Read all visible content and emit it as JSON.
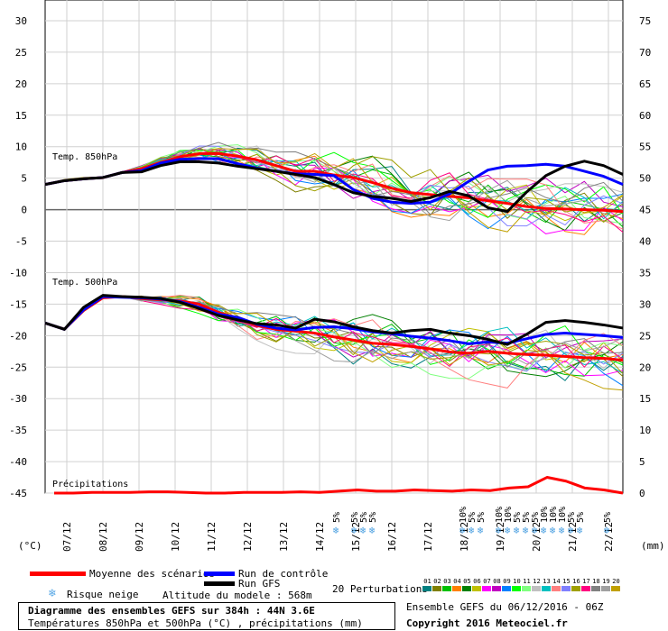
{
  "chart_data": {
    "type": "line",
    "title": "Diagramme des ensembles GEFS sur 384h : 44N 3.6E",
    "subtitle": "Températures 850hPa et 500hPa (°C) , précipitations (mm)",
    "left_axis_unit": "(°C)",
    "right_axis_unit": "(mm)",
    "ylim_left": [
      -45,
      30
    ],
    "ylim_right": [
      0,
      75
    ],
    "left_ticks": [
      "30",
      "25",
      "20",
      "15",
      "10",
      "5",
      "0",
      "-5",
      "-10",
      "-15",
      "-20",
      "-25",
      "-30",
      "-35",
      "-40",
      "-45"
    ],
    "right_ticks": [
      "75",
      "70",
      "65",
      "60",
      "55",
      "50",
      "45",
      "40",
      "35",
      "30",
      "25",
      "20",
      "15",
      "10",
      "5",
      "0"
    ],
    "x_labels": [
      "07/12",
      "08/12",
      "09/12",
      "10/12",
      "11/12",
      "12/12",
      "13/12",
      "14/12",
      "15/12",
      "16/12",
      "17/12",
      "18/12",
      "19/12",
      "20/12",
      "21/12",
      "22/12"
    ],
    "panel_labels": {
      "t850": "Temp. 850hPa",
      "t500": "Temp. 500hPa",
      "precip": "Précipitations"
    },
    "series": [
      {
        "name": "Moyenne des scénarios",
        "panel": "t850",
        "color": "#ff0000",
        "values": [
          4.0,
          4.6,
          4.9,
          5.1,
          5.9,
          6.5,
          7.5,
          8.4,
          8.9,
          8.9,
          8.5,
          7.9,
          7.0,
          6.1,
          6.1,
          5.5,
          5.1,
          4.3,
          3.4,
          2.7,
          2.4,
          2.1,
          1.9,
          1.4,
          1.0,
          0.5,
          0.2,
          0.1,
          0.0,
          -0.1,
          -0.3
        ]
      },
      {
        "name": "Run de contrôle",
        "panel": "t850",
        "color": "#0000ff",
        "values": [
          4.0,
          4.6,
          4.9,
          5.1,
          5.9,
          6.2,
          7.4,
          8.0,
          8.1,
          8.1,
          7.3,
          6.6,
          6.1,
          5.7,
          5.6,
          5.4,
          3.2,
          1.8,
          1.2,
          1.0,
          1.2,
          2.5,
          4.5,
          6.3,
          6.9,
          7.0,
          7.2,
          6.9,
          6.1,
          5.3,
          4.0
        ]
      },
      {
        "name": "Run GFS",
        "panel": "t850",
        "color": "#000000",
        "values": [
          4.0,
          4.6,
          4.9,
          5.1,
          5.9,
          6.0,
          7.0,
          7.6,
          7.6,
          7.4,
          6.9,
          6.5,
          6.1,
          5.6,
          5.1,
          4.0,
          2.7,
          2.1,
          1.8,
          1.3,
          1.9,
          2.9,
          2.2,
          0.3,
          -0.3,
          2.8,
          5.4,
          6.9,
          7.7,
          7.0,
          5.6
        ]
      },
      {
        "name": "Moyenne des scénarios",
        "panel": "t500",
        "color": "#ff0000",
        "values": [
          -18.0,
          -19.0,
          -16.0,
          -14.0,
          -13.8,
          -14.1,
          -14.3,
          -14.5,
          -15.0,
          -16.3,
          -17.3,
          -18.4,
          -19.0,
          -19.3,
          -19.6,
          -20.2,
          -20.7,
          -21.2,
          -21.4,
          -21.7,
          -22.1,
          -22.6,
          -22.8,
          -22.5,
          -22.8,
          -23.0,
          -23.1,
          -23.3,
          -23.5,
          -23.6,
          -23.9
        ]
      },
      {
        "name": "Run de contrôle",
        "panel": "t500",
        "color": "#0000ff",
        "values": [
          -18.0,
          -19.0,
          -15.9,
          -13.8,
          -13.9,
          -14.0,
          -14.2,
          -14.6,
          -15.5,
          -16.6,
          -17.1,
          -18.2,
          -18.8,
          -19.1,
          -18.7,
          -18.6,
          -18.9,
          -19.4,
          -19.7,
          -20.1,
          -20.4,
          -20.8,
          -21.3,
          -21.0,
          -21.2,
          -20.5,
          -19.8,
          -19.6,
          -19.8,
          -20.0,
          -20.3
        ]
      },
      {
        "name": "Run GFS",
        "panel": "t500",
        "color": "#000000",
        "values": [
          -18.0,
          -19.0,
          -15.5,
          -13.6,
          -13.8,
          -13.9,
          -14.1,
          -14.7,
          -15.7,
          -16.8,
          -17.5,
          -18.1,
          -18.3,
          -18.8,
          -17.4,
          -17.8,
          -18.6,
          -19.2,
          -19.6,
          -19.2,
          -19.0,
          -19.6,
          -20.0,
          -20.6,
          -21.4,
          -19.8,
          -17.9,
          -17.6,
          -17.9,
          -18.3,
          -18.8
        ]
      },
      {
        "name": "Moyenne des scénarios",
        "panel": "precip",
        "color": "#ff0000",
        "values": [
          0.0,
          0.0,
          0.1,
          0.1,
          0.1,
          0.2,
          0.2,
          0.1,
          0.0,
          0.0,
          0.1,
          0.1,
          0.1,
          0.2,
          0.1,
          0.3,
          0.5,
          0.3,
          0.3,
          0.5,
          0.4,
          0.3,
          0.5,
          0.4,
          0.8,
          1.0,
          2.5,
          1.9,
          0.8,
          0.5,
          0.0
        ]
      }
    ],
    "snow_risk": [
      {
        "day_index": 7.5,
        "labels": [
          "5%"
        ]
      },
      {
        "day_index": 8.0,
        "labels": [
          "5%",
          "5%",
          "5%"
        ]
      },
      {
        "day_index": 11.0,
        "labels": [
          "10%",
          "5%",
          "5%"
        ]
      },
      {
        "day_index": 12.0,
        "labels": [
          "10%",
          "10%",
          "5%",
          "5%",
          "5%",
          "10%",
          "10%",
          "10%",
          "5%",
          "5%"
        ]
      },
      {
        "day_index": 15.0,
        "labels": [
          "5%"
        ]
      }
    ],
    "legend": {
      "mean": "Moyenne des scénarios",
      "control": "Run de contrôle",
      "gfs": "Run GFS",
      "snow": "Risque neige",
      "altitude": "Altitude du modele : 568m",
      "perturbations": "20 Perturbations"
    },
    "perturbation_ids": [
      "01",
      "02",
      "03",
      "04",
      "05",
      "06",
      "07",
      "08",
      "09",
      "10",
      "11",
      "12",
      "13",
      "14",
      "15",
      "16",
      "17",
      "18",
      "19",
      "20"
    ],
    "perturbation_colors": [
      "#008080",
      "#808000",
      "#00c000",
      "#ff8000",
      "#008000",
      "#c0c000",
      "#ff00ff",
      "#c000c0",
      "#0080ff",
      "#00ff00",
      "#80ff80",
      "#c0c0c0",
      "#00c0c0",
      "#ff8080",
      "#8080ff",
      "#a0a000",
      "#ff0080",
      "#808080",
      "#a0a0a0",
      "#c0a000"
    ],
    "footer": {
      "ensemble": "Ensemble GEFS du 06/12/2016 - 06Z",
      "copyright": "Copyright 2016 Meteociel.fr"
    }
  }
}
